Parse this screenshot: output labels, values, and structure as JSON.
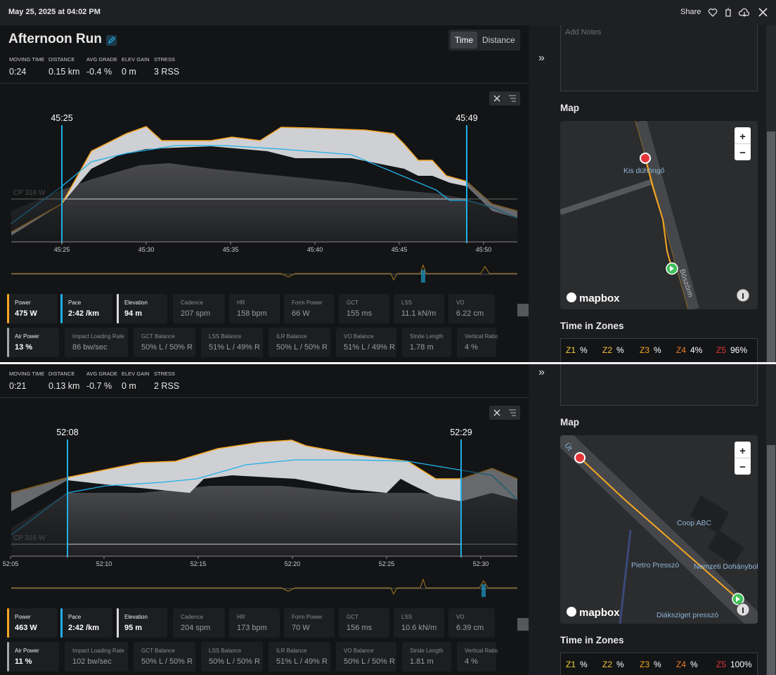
{
  "header": {
    "date": "May 25, 2025 at 04:02 PM",
    "share": "Share"
  },
  "panels": [
    {
      "title": "Afternoon Run",
      "toggle": [
        "Time",
        "Distance"
      ],
      "stats": [
        {
          "label": "MOVING TIME",
          "value": "0:24"
        },
        {
          "label": "DISTANCE",
          "value": "0.15 km"
        },
        {
          "label": "AVG GRADE",
          "value": "-0.4 %"
        },
        {
          "label": "ELEV GAIN",
          "value": "0 m"
        },
        {
          "label": "STRESS",
          "value": "3 RSS"
        }
      ],
      "selection": [
        "45:25",
        "45:49"
      ],
      "cp": "CP 316 W",
      "xticks": [
        "45:25",
        "45:30",
        "45:35",
        "45:40",
        "45:45",
        "45:50"
      ],
      "metrics": [
        [
          {
            "label": "Power",
            "value": "475 W"
          },
          {
            "label": "Pace",
            "value": "2:42 /km"
          },
          {
            "label": "Elevation",
            "value": "94 m"
          },
          {
            "label": "Cadence",
            "value": "207 spm"
          },
          {
            "label": "HR",
            "value": "158 bpm"
          },
          {
            "label": "Form Power",
            "value": "66 W"
          },
          {
            "label": "GCT",
            "value": "155 ms"
          },
          {
            "label": "LSS",
            "value": "11.1 kN/m"
          },
          {
            "label": "VO",
            "value": "6.22 cm"
          }
        ],
        [
          {
            "label": "Air Power",
            "value": "13 %"
          },
          {
            "label": "Impact Loading Rate",
            "value": "86 bw/sec"
          },
          {
            "label": "GCT Balance",
            "value": "50% L / 50% R"
          },
          {
            "label": "LSS Balance",
            "value": "51% L / 49% R"
          },
          {
            "label": "ILR Balance",
            "value": "50% L / 50% R"
          },
          {
            "label": "VO Balance",
            "value": "51% L / 49% R"
          },
          {
            "label": "Stride Length",
            "value": "1.78 m"
          },
          {
            "label": "Vertical Ratio",
            "value": "4 %"
          }
        ]
      ],
      "expand": "»",
      "notes": "Add Notes",
      "map_title": "Map",
      "map_labels": [
        "Kis dühöngő",
        "Böszörm"
      ],
      "zoom": [
        "+",
        "−"
      ],
      "mapbox": "mapbox",
      "zones_title": "Time in Zones",
      "zones": [
        {
          "label": "Z1",
          "value": "%"
        },
        {
          "label": "Z2",
          "value": "%"
        },
        {
          "label": "Z3",
          "value": "%"
        },
        {
          "label": "Z4",
          "value": "4%"
        },
        {
          "label": "Z5",
          "value": "96%"
        }
      ]
    },
    {
      "stats": [
        {
          "label": "MOVING TIME",
          "value": "0:21"
        },
        {
          "label": "DISTANCE",
          "value": "0.13 km"
        },
        {
          "label": "AVG GRADE",
          "value": "-0.7 %"
        },
        {
          "label": "ELEV GAIN",
          "value": "0 m"
        },
        {
          "label": "STRESS",
          "value": "2 RSS"
        }
      ],
      "selection": [
        "52:08",
        "52:29"
      ],
      "cp": "CP 316 W",
      "xticks": [
        "52:05",
        "52:10",
        "52:15",
        "52:20",
        "52:25",
        "52:30"
      ],
      "metrics": [
        [
          {
            "label": "Power",
            "value": "463 W"
          },
          {
            "label": "Pace",
            "value": "2:42 /km"
          },
          {
            "label": "Elevation",
            "value": "95 m"
          },
          {
            "label": "Cadence",
            "value": "204 spm"
          },
          {
            "label": "HR",
            "value": "173 bpm"
          },
          {
            "label": "Form Power",
            "value": "70 W"
          },
          {
            "label": "GCT",
            "value": "156 ms"
          },
          {
            "label": "LSS",
            "value": "10.6 kN/m"
          },
          {
            "label": "VO",
            "value": "6.39 cm"
          }
        ],
        [
          {
            "label": "Air Power",
            "value": "11 %"
          },
          {
            "label": "Impact Loading Rate",
            "value": "102 bw/sec"
          },
          {
            "label": "GCT Balance",
            "value": "50% L / 50% R"
          },
          {
            "label": "LSS Balance",
            "value": "50% L / 50% R"
          },
          {
            "label": "ILR Balance",
            "value": "51% L / 49% R"
          },
          {
            "label": "VO Balance",
            "value": "50% L / 50% R"
          },
          {
            "label": "Stride Length",
            "value": "1.81 m"
          },
          {
            "label": "Vertical Ratio",
            "value": "4 %"
          }
        ]
      ],
      "expand": "»",
      "map_title": "Map",
      "map_labels": [
        "Út",
        "Coop ABC",
        "Pietro Presszó",
        "Nemzeti Dohánybol",
        "Diáksziget presszó"
      ],
      "zoom": [
        "+",
        "−"
      ],
      "mapbox": "mapbox",
      "zones_title": "Time in Zones",
      "zones": [
        {
          "label": "Z1",
          "value": "%"
        },
        {
          "label": "Z2",
          "value": "%"
        },
        {
          "label": "Z3",
          "value": "%"
        },
        {
          "label": "Z4",
          "value": "%"
        },
        {
          "label": "Z5",
          "value": "100%"
        }
      ]
    }
  ]
}
